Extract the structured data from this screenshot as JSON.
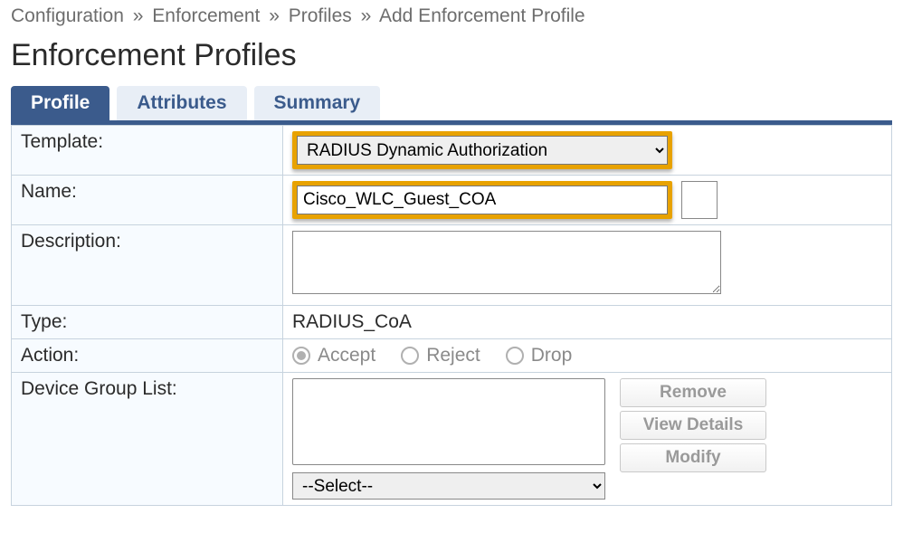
{
  "breadcrumb": {
    "items": [
      "Configuration",
      "Enforcement",
      "Profiles",
      "Add Enforcement Profile"
    ],
    "separator": "»"
  },
  "page_title": "Enforcement Profiles",
  "tabs": {
    "items": [
      {
        "label": "Profile",
        "active": true
      },
      {
        "label": "Attributes",
        "active": false
      },
      {
        "label": "Summary",
        "active": false
      }
    ]
  },
  "form": {
    "template": {
      "label": "Template:",
      "selected": "RADIUS Dynamic Authorization"
    },
    "name": {
      "label": "Name:",
      "value": "Cisco_WLC_Guest_COA"
    },
    "description": {
      "label": "Description:",
      "value": ""
    },
    "type": {
      "label": "Type:",
      "value": "RADIUS_CoA"
    },
    "action": {
      "label": "Action:",
      "options": {
        "accept": "Accept",
        "reject": "Reject",
        "drop": "Drop"
      },
      "selected": "accept",
      "disabled": true
    },
    "device_group_list": {
      "label": "Device Group List:",
      "select_placeholder": "--Select--",
      "buttons": {
        "remove": "Remove",
        "view_details": "View Details",
        "modify": "Modify"
      }
    }
  },
  "colors": {
    "accent": "#3b5b8c",
    "tab_inactive": "#e8eef6",
    "border": "#c7d3de",
    "highlight": "#e8a200",
    "muted_text": "#8a8a8a"
  }
}
